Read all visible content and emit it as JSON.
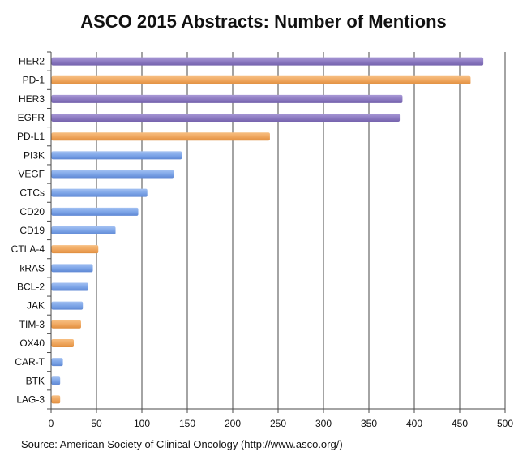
{
  "chart_data": {
    "type": "bar",
    "orientation": "horizontal",
    "title": "ASCO 2015 Abstracts: Number of Mentions",
    "source": "Source: American Society of Clinical Oncology (http://www.asco.org/)",
    "xlabel": "",
    "ylabel": "",
    "xlim": [
      0,
      500
    ],
    "xticks": [
      0,
      50,
      100,
      150,
      200,
      250,
      300,
      350,
      400,
      450,
      500
    ],
    "grid": true,
    "legend": "none",
    "categories": [
      "HER2",
      "PD-1",
      "HER3",
      "EGFR",
      "PD-L1",
      "PI3K",
      "VEGF",
      "CTCs",
      "CD20",
      "CD19",
      "CTLA-4",
      "kRAS",
      "BCL-2",
      "JAK",
      "TIM-3",
      "OX40",
      "CAR-T",
      "BTK",
      "LAG-3"
    ],
    "values": [
      476,
      462,
      387,
      384,
      241,
      144,
      135,
      106,
      96,
      71,
      52,
      46,
      41,
      35,
      33,
      25,
      13,
      10,
      10
    ],
    "bar_colors": [
      "#8e7cc3",
      "#f0a860",
      "#8e7cc3",
      "#8e7cc3",
      "#f0a860",
      "#7ea6e8",
      "#7ea6e8",
      "#7ea6e8",
      "#7ea6e8",
      "#7ea6e8",
      "#f0a860",
      "#7ea6e8",
      "#7ea6e8",
      "#7ea6e8",
      "#f0a860",
      "#f0a860",
      "#7ea6e8",
      "#7ea6e8",
      "#f0a860"
    ]
  }
}
